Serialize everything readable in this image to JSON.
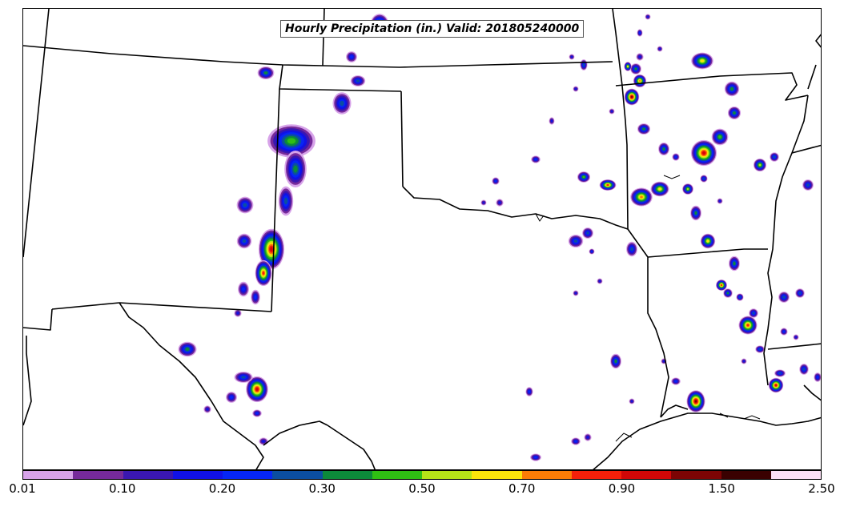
{
  "title": "Hourly Precipitation (in.) Valid: 201805240000",
  "colorbar": {
    "colors": [
      "#d7a3e9",
      "#762a9a",
      "#3a17b0",
      "#1111e6",
      "#0626f5",
      "#0b4ea0",
      "#0c8a3a",
      "#2fbf13",
      "#b5e318",
      "#fbe50b",
      "#fb7c06",
      "#f4200a",
      "#d10707",
      "#7c0404",
      "#3a0101",
      "#fce0f6"
    ],
    "tick_labels": [
      "0.01",
      "0.10",
      "0.20",
      "0.30",
      "0.50",
      "0.70",
      "0.90",
      "1.50",
      "2.50"
    ]
  }
}
